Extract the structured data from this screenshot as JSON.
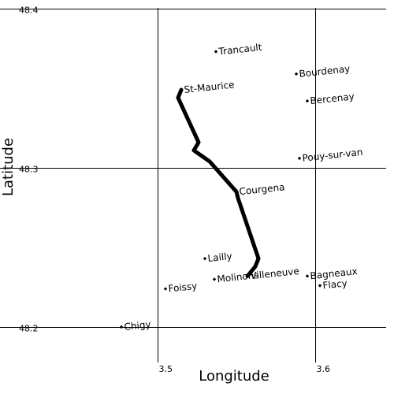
{
  "map": {
    "xlabel": "Longitude",
    "ylabel": "Latitude",
    "xlim": [
      3.425,
      3.745
    ],
    "ylim": [
      48.175,
      48.4
    ],
    "x_ticks": [
      {
        "value": 3.5,
        "label": "3.5"
      },
      {
        "value": 3.6,
        "label": "3.6"
      }
    ],
    "y_ticks": [
      {
        "value": 48.4,
        "label": "48.4"
      },
      {
        "value": 48.3,
        "label": "48.3"
      },
      {
        "value": 48.2,
        "label": "48.2"
      }
    ],
    "grid": true,
    "towns": [
      {
        "name": "Trancault",
        "lon": 3.537,
        "lat": 48.373
      },
      {
        "name": "Bourdenay",
        "lon": 3.588,
        "lat": 48.359
      },
      {
        "name": "St-Maurice",
        "lon": 3.515,
        "lat": 48.349
      },
      {
        "name": "Bercenay",
        "lon": 3.595,
        "lat": 48.342
      },
      {
        "name": "Pouy-sur-van",
        "lon": 3.59,
        "lat": 48.306
      },
      {
        "name": "Courgena",
        "lon": 3.55,
        "lat": 48.285
      },
      {
        "name": "Lailly",
        "lon": 3.53,
        "lat": 48.243
      },
      {
        "name": "Molinons",
        "lon": 3.536,
        "lat": 48.23
      },
      {
        "name": "Villeneuve",
        "lon": 3.557,
        "lat": 48.232
      },
      {
        "name": "Bagneaux",
        "lon": 3.595,
        "lat": 48.232
      },
      {
        "name": "Flacy",
        "lon": 3.603,
        "lat": 48.226
      },
      {
        "name": "Foissy",
        "lon": 3.505,
        "lat": 48.224
      },
      {
        "name": "Chigy",
        "lon": 3.477,
        "lat": 48.2
      }
    ],
    "route": [
      [
        3.515,
        48.349
      ],
      [
        3.513,
        48.344
      ],
      [
        3.526,
        48.316
      ],
      [
        3.523,
        48.311
      ],
      [
        3.533,
        48.304
      ],
      [
        3.55,
        48.285
      ],
      [
        3.551,
        48.281
      ],
      [
        3.564,
        48.243
      ],
      [
        3.562,
        48.238
      ],
      [
        3.557,
        48.232
      ]
    ]
  }
}
